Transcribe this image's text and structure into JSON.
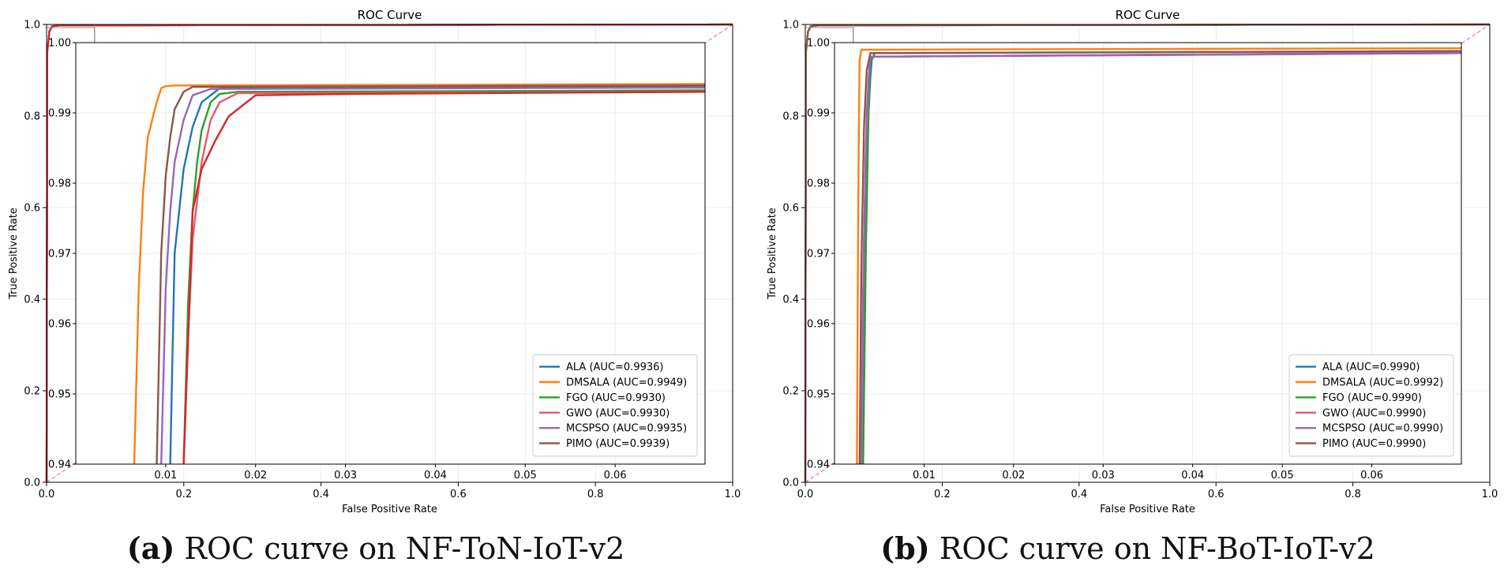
{
  "captions": [
    {
      "letter": "(a)",
      "text": " ROC curve on NF-ToN-IoT-v2"
    },
    {
      "letter": "(b)",
      "text": " ROC curve on NF-BoT-IoT-v2"
    }
  ],
  "chart_data": [
    {
      "type": "line",
      "title": "ROC Curve",
      "xlabel": "False Positive Rate",
      "ylabel": "True Positive Rate",
      "xlim": [
        0,
        1
      ],
      "ylim": [
        0,
        1
      ],
      "xticks": [
        "0.0",
        "0.2",
        "0.4",
        "0.6",
        "0.8",
        "1.0"
      ],
      "yticks": [
        "0.0",
        "0.2",
        "0.4",
        "0.6",
        "0.8",
        "1.0"
      ],
      "grid": true,
      "diagonal": true,
      "legend_position": "lower right",
      "inset": {
        "xlim": [
          0,
          0.07
        ],
        "ylim": [
          0.94,
          1.0
        ],
        "xticks": [
          "0.01",
          "0.02",
          "0.03",
          "0.04",
          "0.05",
          "0.06"
        ],
        "yticks": [
          "0.94",
          "0.95",
          "0.96",
          "0.97",
          "0.98",
          "0.99",
          "1.00"
        ]
      },
      "series": [
        {
          "name": "ALA (AUC=0.9936)",
          "color": "#1f77b4",
          "x": [
            0.0105,
            0.011,
            0.012,
            0.013,
            0.014,
            0.016,
            0.07
          ],
          "y": [
            0.94,
            0.97,
            0.982,
            0.988,
            0.9915,
            0.9935,
            0.9937
          ]
        },
        {
          "name": "DMSALA (AUC=0.9949)",
          "color": "#ff7f0e",
          "x": [
            0.0065,
            0.007,
            0.0075,
            0.008,
            0.009,
            0.0095,
            0.01,
            0.011,
            0.07
          ],
          "y": [
            0.94,
            0.965,
            0.979,
            0.9865,
            0.9915,
            0.9935,
            0.9938,
            0.9939,
            0.9941
          ]
        },
        {
          "name": "FGO (AUC=0.9930)",
          "color": "#2ca02c",
          "x": [
            0.012,
            0.0125,
            0.013,
            0.0135,
            0.014,
            0.015,
            0.016,
            0.018,
            0.07
          ],
          "y": [
            0.94,
            0.963,
            0.976,
            0.983,
            0.9875,
            0.9915,
            0.9927,
            0.993,
            0.9932
          ]
        },
        {
          "name": "GWO (AUC=0.9930)",
          "color": "#e45a6e",
          "x": [
            0.012,
            0.0125,
            0.013,
            0.014,
            0.015,
            0.016,
            0.018,
            0.07
          ],
          "y": [
            0.94,
            0.958,
            0.972,
            0.983,
            0.989,
            0.9915,
            0.9928,
            0.993
          ]
        },
        {
          "name": "MCSPSO (AUC=0.9935)",
          "color": "#9467bd",
          "x": [
            0.0095,
            0.01,
            0.0105,
            0.011,
            0.012,
            0.013,
            0.015,
            0.07
          ],
          "y": [
            0.94,
            0.965,
            0.976,
            0.983,
            0.989,
            0.9925,
            0.9934,
            0.9936
          ]
        },
        {
          "name": "PIMO (AUC=0.9939)",
          "color": "#8c564b",
          "x": [
            0.009,
            0.0095,
            0.01,
            0.0105,
            0.011,
            0.012,
            0.013,
            0.07
          ],
          "y": [
            0.94,
            0.97,
            0.981,
            0.9865,
            0.9905,
            0.993,
            0.9937,
            0.9939
          ]
        },
        {
          "name": "",
          "color": "#d62728",
          "x": [
            0.012,
            0.013,
            0.014,
            0.0155,
            0.017,
            0.02,
            0.03,
            0.07
          ],
          "y": [
            0.94,
            0.976,
            0.982,
            0.986,
            0.9895,
            0.9925,
            0.9927,
            0.993
          ]
        }
      ]
    },
    {
      "type": "line",
      "title": "ROC Curve",
      "xlabel": "False Positive Rate",
      "ylabel": "True Positive Rate",
      "xlim": [
        0,
        1
      ],
      "ylim": [
        0,
        1
      ],
      "xticks": [
        "0.0",
        "0.2",
        "0.4",
        "0.6",
        "0.8",
        "1.0"
      ],
      "yticks": [
        "0.0",
        "0.2",
        "0.4",
        "0.6",
        "0.8",
        "1.0"
      ],
      "grid": true,
      "diagonal": true,
      "legend_position": "lower right",
      "inset": {
        "xlim": [
          0,
          0.07
        ],
        "ylim": [
          0.94,
          1.0
        ],
        "xticks": [
          "0.01",
          "0.02",
          "0.03",
          "0.04",
          "0.05",
          "0.06"
        ],
        "yticks": [
          "0.94",
          "0.95",
          "0.96",
          "0.97",
          "0.98",
          "0.99",
          "1.00"
        ]
      },
      "series": [
        {
          "name": "ALA (AUC=0.9990)",
          "color": "#1f77b4",
          "x": [
            0.003,
            0.0032,
            0.0035,
            0.0038,
            0.004,
            0.0042,
            0.07
          ],
          "y": [
            0.94,
            0.958,
            0.98,
            0.99,
            0.995,
            0.998,
            0.9985
          ]
        },
        {
          "name": "DMSALA (AUC=0.9992)",
          "color": "#ff7f0e",
          "x": [
            0.0025,
            0.0026,
            0.0027,
            0.0028,
            0.003,
            0.07
          ],
          "y": [
            0.94,
            0.965,
            0.985,
            0.9975,
            0.999,
            0.9992
          ]
        },
        {
          "name": "FGO (AUC=0.9990)",
          "color": "#2ca02c",
          "x": [
            0.0032,
            0.0035,
            0.0038,
            0.004,
            0.0045,
            0.07
          ],
          "y": [
            0.94,
            0.97,
            0.99,
            0.997,
            0.9985,
            0.9988
          ]
        },
        {
          "name": "GWO (AUC=0.9990)",
          "color": "#e45a6e",
          "x": [
            0.003,
            0.0032,
            0.0035,
            0.0038,
            0.004,
            0.07
          ],
          "y": [
            0.94,
            0.965,
            0.985,
            0.995,
            0.998,
            0.9986
          ]
        },
        {
          "name": "MCSPSO (AUC=0.9990)",
          "color": "#9467bd",
          "x": [
            0.003,
            0.0033,
            0.0036,
            0.004,
            0.07
          ],
          "y": [
            0.94,
            0.972,
            0.99,
            0.998,
            0.9985
          ]
        },
        {
          "name": "PIMO (AUC=0.9990)",
          "color": "#8c564b",
          "x": [
            0.0028,
            0.003,
            0.0033,
            0.0036,
            0.004,
            0.07
          ],
          "y": [
            0.94,
            0.968,
            0.988,
            0.996,
            0.9985,
            0.9988
          ]
        }
      ]
    }
  ]
}
